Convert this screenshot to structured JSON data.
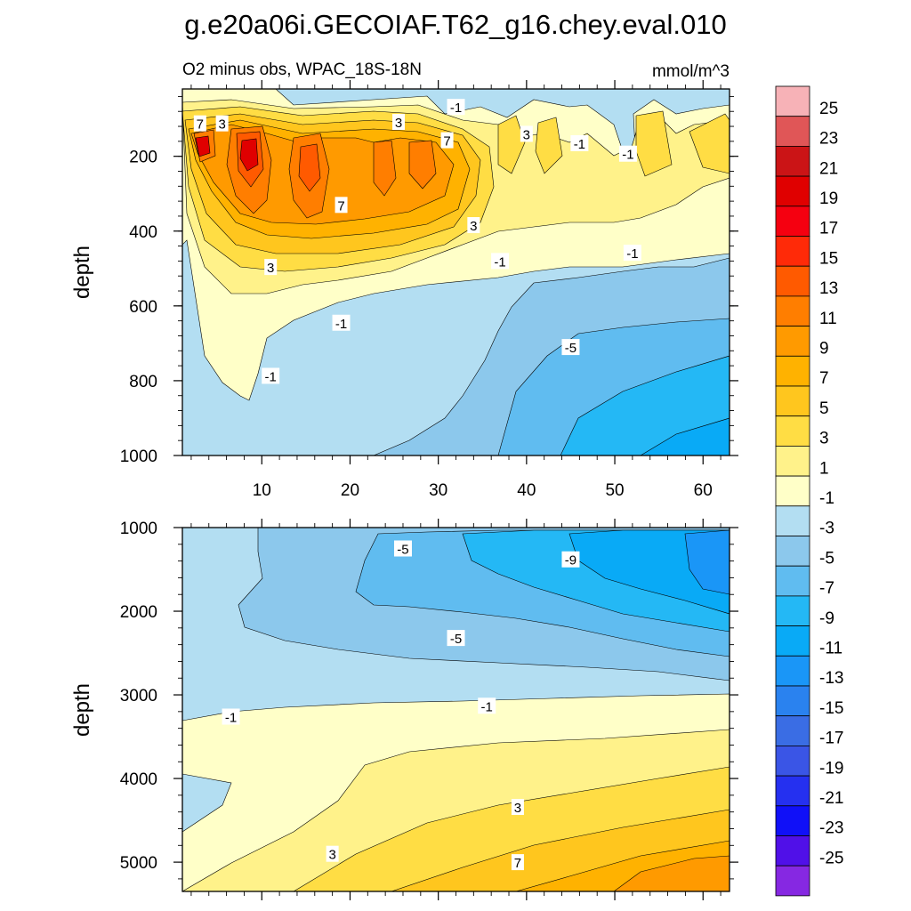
{
  "chart_data": {
    "type": "contour",
    "title": "g.e20a06i.GECOIAF.T62_g16.chey.eval.010",
    "subtitle_left": "O2 minus obs, WPAC_18S-18N",
    "subtitle_right": "mmol/m^3",
    "units": "mmol/m^3",
    "colorbar": {
      "labels": [
        "25",
        "23",
        "21",
        "19",
        "17",
        "15",
        "13",
        "11",
        "9",
        "7",
        "5",
        "3",
        "1",
        "-1",
        "-3",
        "-5",
        "-7",
        "-9",
        "-11",
        "-13",
        "-15",
        "-17",
        "-19",
        "-21",
        "-23",
        "-25"
      ],
      "colors": [
        "#f7b2b7",
        "#e05657",
        "#cb1416",
        "#e00000",
        "#f50010",
        "#ff2a08",
        "#ff5a00",
        "#ff7e00",
        "#ff9a00",
        "#ffb200",
        "#ffc61e",
        "#ffdd44",
        "#fff28a",
        "#ffffc8",
        "#b3def2",
        "#8cc8ec",
        "#60bcf0",
        "#24b8f5",
        "#09aaf6",
        "#1a96f7",
        "#2a82ef",
        "#3a6de4",
        "#3a55e6",
        "#2530f0",
        "#1010f8",
        "#5010e8",
        "#8628e2"
      ]
    },
    "panels": [
      {
        "name": "upper",
        "xlabel": "",
        "ylabel": "depth",
        "xlim": [
          1,
          63
        ],
        "ylim": [
          1000,
          20
        ],
        "xticks": [
          10,
          20,
          30,
          40,
          50,
          60
        ],
        "xticklabels": [
          "10",
          "20",
          "30",
          "40",
          "50",
          "60"
        ],
        "yticks": [
          200,
          400,
          600,
          800,
          1000
        ],
        "yticklabels": [
          "200",
          "400",
          "600",
          "800",
          "1000"
        ],
        "contour_labels": [
          {
            "text": "7",
            "x": 3,
            "y": 112
          },
          {
            "text": "3",
            "x": 5.5,
            "y": 112
          },
          {
            "text": "3",
            "x": 25.5,
            "y": 108
          },
          {
            "text": "-1",
            "x": 32,
            "y": 68
          },
          {
            "text": "7",
            "x": 31,
            "y": 157
          },
          {
            "text": "3",
            "x": 40,
            "y": 140
          },
          {
            "text": "-1",
            "x": 46,
            "y": 165
          },
          {
            "text": "-1",
            "x": 51.5,
            "y": 193
          },
          {
            "text": "7",
            "x": 19,
            "y": 330
          },
          {
            "text": "3",
            "x": 34,
            "y": 384
          },
          {
            "text": "-1",
            "x": 37,
            "y": 480
          },
          {
            "text": "-1",
            "x": 52,
            "y": 458
          },
          {
            "text": "3",
            "x": 11,
            "y": 496
          },
          {
            "text": "-1",
            "x": 19,
            "y": 645
          },
          {
            "text": "-5",
            "x": 45,
            "y": 710
          },
          {
            "text": "-1",
            "x": 11,
            "y": 787
          }
        ]
      },
      {
        "name": "lower",
        "xlabel": "",
        "ylabel": "depth",
        "xlim": [
          1,
          63
        ],
        "ylim": [
          5350,
          1000
        ],
        "xticks": [
          10,
          20,
          30,
          40,
          50,
          60
        ],
        "xticklabels": [
          "10",
          "20",
          "30",
          "40",
          "50",
          "60"
        ],
        "yticks": [
          1000,
          2000,
          3000,
          4000,
          5000
        ],
        "yticklabels": [
          "1000",
          "2000",
          "3000",
          "4000",
          "5000"
        ],
        "contour_labels": [
          {
            "text": "-5",
            "x": 26,
            "y": 1250
          },
          {
            "text": "-9",
            "x": 45,
            "y": 1380
          },
          {
            "text": "-5",
            "x": 32,
            "y": 2320
          },
          {
            "text": "-1",
            "x": 6.5,
            "y": 3260
          },
          {
            "text": "-1",
            "x": 35.5,
            "y": 3130
          },
          {
            "text": "3",
            "x": 39,
            "y": 4340
          },
          {
            "text": "3",
            "x": 18,
            "y": 4900
          },
          {
            "text": "7",
            "x": 39,
            "y": 5000
          }
        ]
      }
    ]
  }
}
